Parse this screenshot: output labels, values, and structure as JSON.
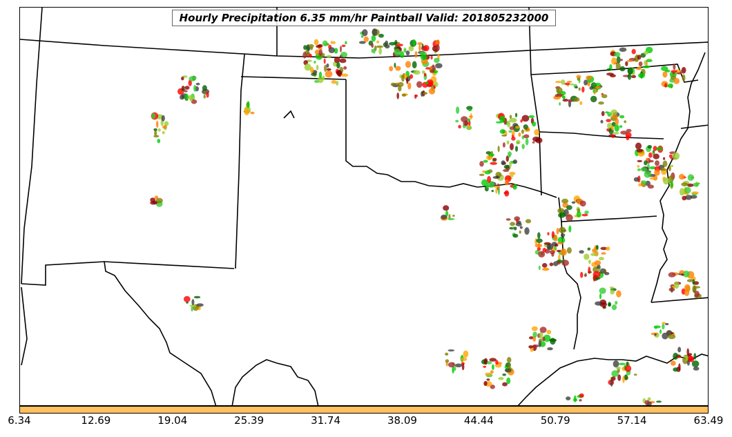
{
  "title": "Hourly Precipitation 6.35 mm/hr Paintball Valid: 201805232000",
  "colorbar": {
    "color": "#ffc060",
    "ticks": [
      "6.34",
      "12.69",
      "19.04",
      "25.39",
      "31.74",
      "38.09",
      "44.44",
      "50.79",
      "57.14",
      "63.49"
    ]
  },
  "colors": {
    "boundary": "#000000",
    "paintball_palette": [
      "#8b0000",
      "#ff0000",
      "#ff7f00",
      "#ffa500",
      "#9acd32",
      "#808000",
      "#00cc00",
      "#32cd32",
      "#006400",
      "#404040",
      "#a52a2a"
    ]
  },
  "chart_data": {
    "type": "map",
    "map_kind": "paintball precipitation plot",
    "region": "Southern Plains / South Central United States",
    "colorbar_range": [
      6.34,
      63.49
    ]
  }
}
